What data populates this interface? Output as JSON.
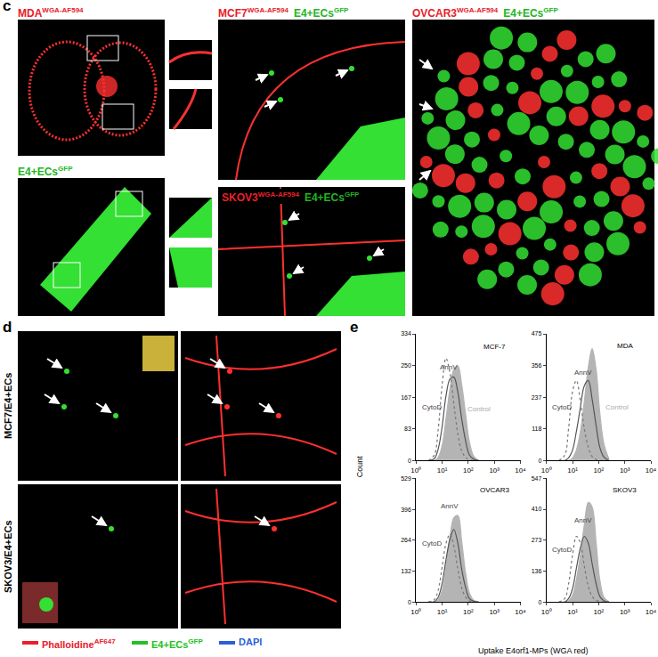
{
  "figure": {
    "c": {
      "label": "c",
      "images": [
        {
          "title": [
            {
              "text": "MDA",
              "sup": "WGA-AF594",
              "color": "#e8202a"
            }
          ]
        },
        {
          "title": [
            {
              "text": "E4+ECs",
              "sup": "GFP",
              "color": "#22b522"
            }
          ]
        },
        {
          "title": [
            {
              "text": "MCF7",
              "sup": "WGA-AF594",
              "color": "#e8202a"
            },
            {
              "text": "E4+ECs",
              "sup": "GFP",
              "color": "#22b522"
            }
          ]
        },
        {
          "title": [
            {
              "text": "SKOV3",
              "sup": "WGA-AF594",
              "color": "#e8202a"
            },
            {
              "text": "E4+ECs",
              "sup": "GFP",
              "color": "#22b522"
            }
          ]
        },
        {
          "title": [
            {
              "text": "OVCAR3",
              "sup": "WGA-AF594",
              "color": "#e8202a"
            },
            {
              "text": "E4+ECs",
              "sup": "GFP",
              "color": "#22b522"
            }
          ]
        }
      ]
    },
    "d": {
      "label": "d",
      "row_labels": [
        "MCF7/E4+ECs",
        "SKOV3/E4+ECs"
      ],
      "legend": [
        {
          "text": "Phalloidine",
          "sup": "AF647",
          "color": "#e8202a"
        },
        {
          "text": "E4+ECs",
          "sup": "GFP",
          "color": "#22c222"
        },
        {
          "text": "DAPI",
          "color": "#2a5fd8"
        }
      ]
    },
    "e": {
      "label": "e",
      "x_label": "Uptake E4orf1-MPs (WGA red)",
      "y_label": "Count"
    }
  },
  "chart_data": [
    {
      "type": "line",
      "title": "MCF-7",
      "log": "x",
      "x": [
        3,
        5,
        7,
        10,
        14,
        20,
        28,
        40,
        56,
        80,
        110,
        160,
        250
      ],
      "xlim": [
        1,
        10000
      ],
      "xticks": [
        {
          "value": 1,
          "label": "10⁰"
        },
        {
          "value": 10,
          "label": "10¹"
        },
        {
          "value": 100,
          "label": "10²"
        },
        {
          "value": 1000,
          "label": "10³"
        },
        {
          "value": 10000,
          "label": "10⁴"
        }
      ],
      "ylim": [
        0,
        334
      ],
      "yticks": [
        0,
        83,
        167,
        250,
        334
      ],
      "series": [
        {
          "name": "Control",
          "color": "#b4b4b4",
          "line_style": "filled",
          "values": [
            0,
            0,
            8,
            40,
            110,
            190,
            240,
            250,
            200,
            120,
            50,
            12,
            0
          ]
        },
        {
          "name": "AnnV",
          "color": "#555555",
          "line_style": "solid",
          "values": [
            0,
            5,
            30,
            90,
            170,
            215,
            220,
            180,
            110,
            50,
            15,
            4,
            0
          ]
        },
        {
          "name": "CytoD",
          "color": "#777777",
          "line_style": "dotted",
          "values": [
            0,
            15,
            80,
            200,
            270,
            230,
            150,
            70,
            25,
            8,
            2,
            0,
            0
          ]
        }
      ],
      "annotations": [
        {
          "text": "MCF-7",
          "x": 1000,
          "y": 300,
          "color": "#000000"
        },
        {
          "text": "AnnV",
          "x": 18,
          "y": 245,
          "color": "#444444"
        },
        {
          "text": "CytoD",
          "x": 4,
          "y": 140,
          "color": "#444444"
        },
        {
          "text": "Control",
          "x": 250,
          "y": 135,
          "color": "#aaaaaa"
        }
      ]
    },
    {
      "type": "line",
      "title": "MDA",
      "log": "x",
      "x": [
        3,
        5,
        7,
        10,
        14,
        20,
        28,
        40,
        56,
        80,
        110,
        160,
        250
      ],
      "xlim": [
        1,
        10000
      ],
      "xticks": [
        {
          "value": 1,
          "label": "10⁰"
        },
        {
          "value": 10,
          "label": "10¹"
        },
        {
          "value": 100,
          "label": "10²"
        },
        {
          "value": 1000,
          "label": "10³"
        },
        {
          "value": 10000,
          "label": "10⁴"
        }
      ],
      "ylim": [
        0,
        475
      ],
      "yticks": [
        0,
        118,
        237,
        356,
        475
      ],
      "series": [
        {
          "name": "Control",
          "color": "#b4b4b4",
          "line_style": "filled",
          "values": [
            0,
            0,
            0,
            10,
            40,
            110,
            220,
            350,
            420,
            340,
            180,
            60,
            5
          ]
        },
        {
          "name": "AnnV",
          "color": "#555555",
          "line_style": "solid",
          "values": [
            0,
            0,
            10,
            40,
            110,
            200,
            280,
            300,
            230,
            130,
            50,
            12,
            0
          ]
        },
        {
          "name": "CytoD",
          "color": "#777777",
          "line_style": "dotted",
          "values": [
            0,
            20,
            120,
            260,
            300,
            220,
            120,
            50,
            15,
            4,
            0,
            0,
            0
          ]
        }
      ],
      "annotations": [
        {
          "text": "MDA",
          "x": 1000,
          "y": 430,
          "color": "#000000"
        },
        {
          "text": "AnnV",
          "x": 25,
          "y": 330,
          "color": "#444444"
        },
        {
          "text": "CytoD",
          "x": 4,
          "y": 200,
          "color": "#444444"
        },
        {
          "text": "Control",
          "x": 500,
          "y": 200,
          "color": "#aaaaaa"
        }
      ]
    },
    {
      "type": "line",
      "title": "OVCAR3",
      "log": "x",
      "x": [
        3,
        5,
        7,
        10,
        14,
        20,
        28,
        40,
        56,
        80,
        110,
        160,
        250
      ],
      "xlim": [
        1,
        10000
      ],
      "xticks": [
        {
          "value": 1,
          "label": "10⁰"
        },
        {
          "value": 10,
          "label": "10¹"
        },
        {
          "value": 100,
          "label": "10²"
        },
        {
          "value": 1000,
          "label": "10³"
        },
        {
          "value": 10000,
          "label": "10⁴"
        }
      ],
      "ylim": [
        0,
        529
      ],
      "yticks": [
        0,
        132,
        264,
        396,
        529
      ],
      "series": [
        {
          "name": "Control",
          "color": "#b4b4b4",
          "line_style": "filled",
          "values": [
            0,
            0,
            10,
            50,
            150,
            280,
            360,
            370,
            260,
            120,
            40,
            8,
            0
          ]
        },
        {
          "name": "AnnV",
          "color": "#555555",
          "line_style": "solid",
          "values": [
            0,
            2,
            20,
            80,
            180,
            270,
            310,
            250,
            140,
            60,
            15,
            3,
            0
          ]
        },
        {
          "name": "CytoD",
          "color": "#777777",
          "line_style": "dotted",
          "values": [
            0,
            10,
            50,
            150,
            250,
            290,
            240,
            140,
            60,
            20,
            5,
            0,
            0
          ]
        }
      ],
      "annotations": [
        {
          "text": "OVCAR3",
          "x": 1000,
          "y": 480,
          "color": "#000000"
        },
        {
          "text": "AnnV",
          "x": 20,
          "y": 410,
          "color": "#444444"
        },
        {
          "text": "CytoD",
          "x": 4,
          "y": 250,
          "color": "#444444"
        }
      ]
    },
    {
      "type": "line",
      "title": "SKOV3",
      "log": "x",
      "x": [
        3,
        5,
        7,
        10,
        14,
        20,
        28,
        40,
        56,
        80,
        110,
        160,
        250
      ],
      "xlim": [
        1,
        10000
      ],
      "xticks": [
        {
          "value": 1,
          "label": "10⁰"
        },
        {
          "value": 10,
          "label": "10¹"
        },
        {
          "value": 100,
          "label": "10²"
        },
        {
          "value": 1000,
          "label": "10³"
        },
        {
          "value": 10000,
          "label": "10⁴"
        }
      ],
      "ylim": [
        0,
        547
      ],
      "yticks": [
        0,
        136,
        273,
        410,
        547
      ],
      "series": [
        {
          "name": "Control",
          "color": "#b4b4b4",
          "line_style": "filled",
          "values": [
            0,
            0,
            5,
            30,
            100,
            210,
            340,
            440,
            420,
            260,
            100,
            20,
            0
          ]
        },
        {
          "name": "AnnV",
          "color": "#555555",
          "line_style": "solid",
          "values": [
            0,
            0,
            15,
            60,
            150,
            240,
            290,
            260,
            170,
            80,
            25,
            5,
            0
          ]
        },
        {
          "name": "CytoD",
          "color": "#777777",
          "line_style": "dotted",
          "values": [
            0,
            15,
            80,
            210,
            290,
            260,
            160,
            70,
            25,
            8,
            2,
            0,
            0
          ]
        }
      ],
      "annotations": [
        {
          "text": "SKOV3",
          "x": 1000,
          "y": 495,
          "color": "#000000"
        },
        {
          "text": "AnnV",
          "x": 25,
          "y": 360,
          "color": "#444444"
        },
        {
          "text": "CytoD",
          "x": 4,
          "y": 230,
          "color": "#444444"
        }
      ]
    }
  ]
}
